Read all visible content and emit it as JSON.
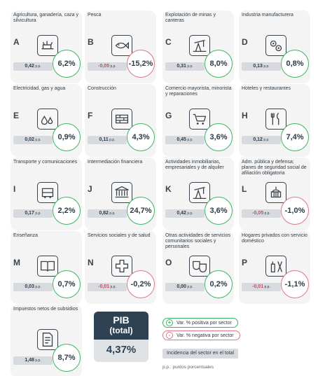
{
  "chart_data": {
    "type": "table",
    "sectors": [
      {
        "code": "A",
        "name": "Agricultura, ganadería, caza y silvicultura",
        "incidence": "0,42",
        "var": "6,2%",
        "pp_unit": "p.p.",
        "positive": true,
        "icon": "cow-icon"
      },
      {
        "code": "B",
        "name": "Pesca",
        "incidence": "-0,05",
        "var": "-15,2%",
        "pp_unit": "p.p.",
        "positive": false,
        "icon": "fish-icon"
      },
      {
        "code": "C",
        "name": "Explotación de minas y canteras",
        "incidence": "0,31",
        "var": "8,0%",
        "pp_unit": "p.p.",
        "positive": true,
        "icon": "pumpjack-icon"
      },
      {
        "code": "D",
        "name": "Industria manufacturera",
        "incidence": "0,13",
        "var": "0,8%",
        "pp_unit": "p.p.",
        "positive": true,
        "icon": "gears-icon"
      },
      {
        "code": "E",
        "name": "Electricidad, gas y agua",
        "incidence": "0,02",
        "var": "0,9%",
        "pp_unit": "p.p.",
        "positive": true,
        "icon": "flame-drop-icon"
      },
      {
        "code": "F",
        "name": "Construcción",
        "incidence": "0,11",
        "var": "4,3%",
        "pp_unit": "p.p.",
        "positive": true,
        "icon": "brick-wall-icon"
      },
      {
        "code": "G",
        "name": "Comercio mayorista, minorista y reparaciones",
        "incidence": "0,45",
        "var": "3,6%",
        "pp_unit": "p.p.",
        "positive": true,
        "icon": "cart-icon"
      },
      {
        "code": "H",
        "name": "Hoteles y restaurantes",
        "incidence": "0,12",
        "var": "7,4%",
        "pp_unit": "p.p.",
        "positive": true,
        "icon": "cutlery-icon"
      },
      {
        "code": "I",
        "name": "Transporte y comunicaciones",
        "incidence": "0,17",
        "var": "2,2%",
        "pp_unit": "p.p.",
        "positive": true,
        "icon": "bus-icon"
      },
      {
        "code": "J",
        "name": "Intermediación financiera",
        "incidence": "0,82",
        "var": "24,7%",
        "pp_unit": "p.p.",
        "positive": true,
        "icon": "bank-icon"
      },
      {
        "code": "K",
        "name": "Actividades inmobiliarias, empresariales y de alquiler",
        "incidence": "0,42",
        "var": "3,6%",
        "pp_unit": "p.p.",
        "positive": true,
        "icon": "pumpjack-icon"
      },
      {
        "code": "L",
        "name": "Adm. pública y defensa; planes de seguridad social de afiliación obligatoria",
        "incidence": "-0,05",
        "var": "-1,0%",
        "pp_unit": "p.p.",
        "positive": false,
        "icon": "capitol-icon"
      },
      {
        "code": "M",
        "name": "Enseñanza",
        "incidence": "0,03",
        "var": "0,7%",
        "pp_unit": "p.p.",
        "positive": true,
        "icon": "book-icon"
      },
      {
        "code": "N",
        "name": "Servicios sociales y de salud",
        "incidence": "-0,01",
        "var": "-0,2%",
        "pp_unit": "p.p.",
        "positive": false,
        "icon": "cross-icon"
      },
      {
        "code": "O",
        "name": "Otras actividades de servicios comunitarios sociales y personales",
        "incidence": "0,00",
        "var": "0,2%",
        "pp_unit": "p.p.",
        "positive": true,
        "icon": "masks-icon"
      },
      {
        "code": "P",
        "name": "Hogares privados con servicio doméstico",
        "incidence": "-0,01",
        "var": "-1,1%",
        "pp_unit": "p.p.",
        "positive": false,
        "icon": "cleaning-icon"
      },
      {
        "code": "",
        "name": "Impuestos netos de subsidios",
        "incidence": "1,48",
        "var": "8,7%",
        "pp_unit": "p.p.",
        "positive": true,
        "icon": "tax-document-icon"
      }
    ],
    "total": {
      "label_line1": "PIB",
      "label_line2": "(total)",
      "value": "4,37%"
    }
  },
  "legend": {
    "positive_symbol": "+",
    "positive_label": "Var. % positiva por sector",
    "negative_symbol": "-",
    "negative_label": "Var. % negativa por sector",
    "incidence_label": "Incidencia del sector en el total",
    "footnote": "p.p.: puntos porcentuales"
  },
  "colors": {
    "positive": "#3eb563",
    "negative": "#e07688",
    "dark": "#2f4254"
  }
}
